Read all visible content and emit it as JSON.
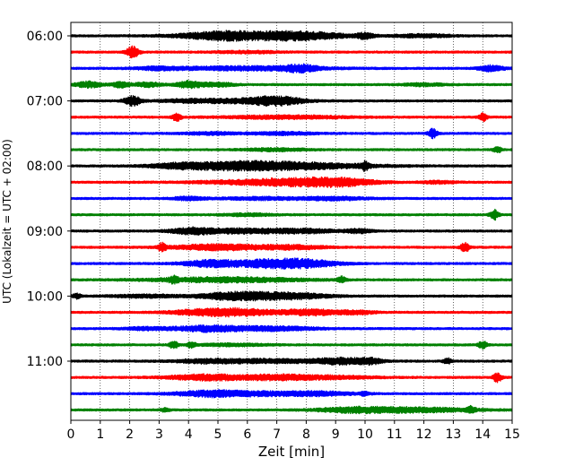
{
  "chart_data": {
    "type": "line",
    "title": "",
    "xlabel": "Zeit  [min]",
    "ylabel": "UTC (Lokalzeit = UTC + 02:00)",
    "xlim": [
      0,
      15
    ],
    "xticks": [
      "0",
      "1",
      "2",
      "3",
      "4",
      "5",
      "6",
      "7",
      "8",
      "9",
      "10",
      "11",
      "12",
      "13",
      "14",
      "15"
    ],
    "yticks": [
      "06:00",
      "07:00",
      "08:00",
      "09:00",
      "10:00",
      "11:00"
    ],
    "grid": "vertical dotted",
    "colors": [
      "#000000",
      "#ff0000",
      "#0000ff",
      "#008000"
    ],
    "series": [
      {
        "row": 0,
        "color": "#000000",
        "start": "06:00",
        "events": [
          [
            6.2,
            1.6,
            3.5
          ],
          [
            8.0,
            1.0,
            2.5
          ],
          [
            5.0,
            0.8,
            2
          ],
          [
            12.0,
            0.7,
            1.6
          ],
          [
            10.0,
            0.2,
            2.5
          ]
        ]
      },
      {
        "row": 1,
        "color": "#ff0000",
        "start": "06:15",
        "events": [
          [
            2.1,
            0.15,
            6
          ],
          [
            6.0,
            0.8,
            1
          ]
        ]
      },
      {
        "row": 2,
        "color": "#0000ff",
        "start": "06:30",
        "events": [
          [
            6.0,
            1.8,
            2
          ],
          [
            7.8,
            0.4,
            3
          ],
          [
            14.3,
            0.3,
            3
          ],
          [
            3.0,
            0.5,
            1.5
          ]
        ]
      },
      {
        "row": 3,
        "color": "#008000",
        "start": "06:45",
        "events": [
          [
            0.6,
            0.3,
            3
          ],
          [
            1.7,
            0.2,
            3
          ],
          [
            2.6,
            0.3,
            2.5
          ],
          [
            4.0,
            0.3,
            3.5
          ],
          [
            5.0,
            0.4,
            2
          ],
          [
            12.0,
            0.5,
            1.3
          ]
        ]
      },
      {
        "row": 4,
        "color": "#000000",
        "start": "07:00",
        "events": [
          [
            2.1,
            0.2,
            5
          ],
          [
            7.0,
            0.6,
            3.5
          ],
          [
            6.0,
            1.2,
            2
          ],
          [
            4.0,
            0.7,
            1.4
          ]
        ]
      },
      {
        "row": 5,
        "color": "#ff0000",
        "start": "07:15",
        "events": [
          [
            3.6,
            0.1,
            4
          ],
          [
            7.3,
            1.5,
            1.6
          ],
          [
            14.0,
            0.1,
            4
          ]
        ]
      },
      {
        "row": 6,
        "color": "#0000ff",
        "start": "07:30",
        "events": [
          [
            12.3,
            0.1,
            5
          ],
          [
            4.7,
            0.6,
            1.3
          ],
          [
            7.2,
            0.8,
            1.3
          ]
        ]
      },
      {
        "row": 7,
        "color": "#008000",
        "start": "07:45",
        "events": [
          [
            14.5,
            0.1,
            3
          ],
          [
            7.0,
            0.8,
            1.3
          ]
        ]
      },
      {
        "row": 8,
        "color": "#000000",
        "start": "08:00",
        "events": [
          [
            5.5,
            1.4,
            3.5
          ],
          [
            7.8,
            1.8,
            2.8
          ],
          [
            10.0,
            0.1,
            4
          ],
          [
            3.5,
            0.6,
            1.6
          ]
        ]
      },
      {
        "row": 9,
        "color": "#ff0000",
        "start": "08:15",
        "events": [
          [
            7.8,
            1.2,
            3
          ],
          [
            9.3,
            0.8,
            3
          ],
          [
            6.0,
            1.4,
            1.6
          ],
          [
            12.5,
            0.4,
            1.3
          ]
        ]
      },
      {
        "row": 10,
        "color": "#0000ff",
        "start": "08:30",
        "events": [
          [
            4.0,
            0.4,
            1.6
          ],
          [
            6.5,
            1.0,
            1.3
          ],
          [
            9.0,
            0.8,
            1.6
          ]
        ]
      },
      {
        "row": 11,
        "color": "#008000",
        "start": "08:45",
        "events": [
          [
            14.4,
            0.1,
            5
          ],
          [
            6.0,
            0.6,
            1.2
          ]
        ]
      },
      {
        "row": 12,
        "color": "#000000",
        "start": "09:00",
        "events": [
          [
            4.1,
            0.5,
            3
          ],
          [
            5.8,
            1.0,
            2.5
          ],
          [
            8.0,
            0.8,
            2
          ],
          [
            9.8,
            0.3,
            2
          ]
        ]
      },
      {
        "row": 13,
        "color": "#ff0000",
        "start": "09:15",
        "events": [
          [
            5.0,
            1.1,
            3
          ],
          [
            7.5,
            0.8,
            2
          ],
          [
            3.1,
            0.1,
            4
          ],
          [
            13.4,
            0.1,
            5
          ]
        ]
      },
      {
        "row": 14,
        "color": "#0000ff",
        "start": "09:30",
        "events": [
          [
            4.8,
            0.7,
            3.5
          ],
          [
            6.7,
            0.8,
            3.5
          ],
          [
            8.0,
            0.8,
            3.5
          ]
        ]
      },
      {
        "row": 15,
        "color": "#008000",
        "start": "09:45",
        "events": [
          [
            5.3,
            1.8,
            2.5
          ],
          [
            3.5,
            0.1,
            3
          ],
          [
            9.2,
            0.1,
            3
          ]
        ]
      },
      {
        "row": 16,
        "color": "#000000",
        "start": "10:00",
        "events": [
          [
            5.6,
            0.9,
            4
          ],
          [
            7.5,
            0.9,
            3
          ],
          [
            0.2,
            0.1,
            2.5
          ],
          [
            2.5,
            0.8,
            1.5
          ]
        ]
      },
      {
        "row": 17,
        "color": "#ff0000",
        "start": "10:15",
        "events": [
          [
            5.5,
            0.9,
            4
          ],
          [
            8.2,
            0.8,
            3
          ],
          [
            4.0,
            0.6,
            1.5
          ],
          [
            9.8,
            0.4,
            1.5
          ]
        ]
      },
      {
        "row": 18,
        "color": "#0000ff",
        "start": "10:30",
        "events": [
          [
            4.7,
            0.9,
            3
          ],
          [
            7.0,
            1.0,
            2
          ],
          [
            2.5,
            0.5,
            1.3
          ]
        ]
      },
      {
        "row": 19,
        "color": "#008000",
        "start": "10:45",
        "events": [
          [
            3.5,
            0.1,
            4
          ],
          [
            4.1,
            0.1,
            3
          ],
          [
            14.0,
            0.1,
            4
          ],
          [
            5.5,
            0.8,
            1.2
          ]
        ]
      },
      {
        "row": 20,
        "color": "#000000",
        "start": "11:00",
        "events": [
          [
            9.2,
            0.6,
            3
          ],
          [
            6.5,
            1.5,
            2
          ],
          [
            4.5,
            0.6,
            1.4
          ],
          [
            10.2,
            0.3,
            2.5
          ],
          [
            12.8,
            0.1,
            3
          ]
        ]
      },
      {
        "row": 21,
        "color": "#ff0000",
        "start": "11:15",
        "events": [
          [
            4.6,
            0.9,
            3
          ],
          [
            6.8,
            0.8,
            2
          ],
          [
            8.5,
            1.2,
            1.8
          ],
          [
            14.5,
            0.1,
            5
          ]
        ]
      },
      {
        "row": 22,
        "color": "#0000ff",
        "start": "11:30",
        "events": [
          [
            4.7,
            0.8,
            3
          ],
          [
            6.5,
            1.0,
            2
          ],
          [
            8.5,
            0.8,
            2
          ],
          [
            10.0,
            0.1,
            2
          ]
        ]
      },
      {
        "row": 23,
        "color": "#008000",
        "start": "11:45",
        "events": [
          [
            11.5,
            1.5,
            2.5
          ],
          [
            9.5,
            0.8,
            1.8
          ],
          [
            13.6,
            0.1,
            3
          ],
          [
            3.2,
            0.1,
            2
          ]
        ]
      }
    ]
  }
}
